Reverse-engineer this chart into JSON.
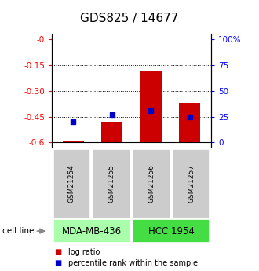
{
  "title": "GDS825 / 14677",
  "samples": [
    "GSM21254",
    "GSM21255",
    "GSM21256",
    "GSM21257"
  ],
  "log_ratios": [
    -0.59,
    -0.48,
    -0.19,
    -0.37
  ],
  "percentile_ranks": [
    20,
    27,
    31,
    25
  ],
  "cell_lines": [
    {
      "label": "MDA-MB-436",
      "samples": [
        0,
        1
      ],
      "color": "#aaffaa"
    },
    {
      "label": "HCC 1954",
      "samples": [
        2,
        3
      ],
      "color": "#44dd44"
    }
  ],
  "ylim_left": [
    -0.63,
    0.03
  ],
  "yticks_left": [
    0,
    -0.15,
    -0.3,
    -0.45,
    -0.6
  ],
  "ytick_labels_left": [
    "-0",
    "-0.15",
    "-0.30",
    "-0.45",
    "-0.6"
  ],
  "yticks_right_pct": [
    100,
    75,
    50,
    25,
    0
  ],
  "ytick_labels_right": [
    "100%",
    "75",
    "50",
    "25",
    "0"
  ],
  "bar_color": "#cc0000",
  "dot_color": "#0000cc",
  "bg_sample_box": "#cccccc",
  "grid_lines": [
    -0.15,
    -0.3,
    -0.45
  ],
  "title_fontsize": 11,
  "tick_fontsize": 7.5,
  "cell_line_label_fontsize": 8.5
}
